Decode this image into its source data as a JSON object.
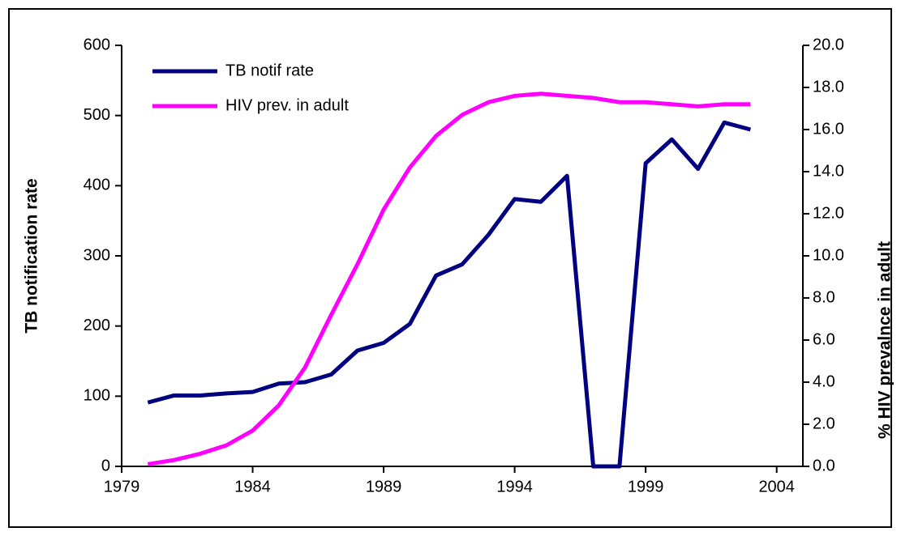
{
  "chart_data": {
    "type": "line",
    "y_label": "TB notification rate",
    "y2_label": "% HIV prevalnce in adult",
    "x": [
      1980,
      1981,
      1982,
      1983,
      1984,
      1985,
      1986,
      1987,
      1988,
      1989,
      1990,
      1991,
      1992,
      1993,
      1994,
      1995,
      1996,
      1997,
      1998,
      1999,
      2000,
      2001,
      2002,
      2003
    ],
    "series": [
      {
        "name": "TB notif rate",
        "color": "#000080",
        "values": [
          91,
          101,
          101,
          104,
          106,
          118,
          120,
          131,
          165,
          176,
          203,
          272,
          288,
          330,
          381,
          377,
          414,
          0,
          0,
          432,
          466,
          424,
          490,
          480
        ]
      },
      {
        "name": "HIV prev. in adult",
        "color": "#ff00ff",
        "axis": "y2",
        "values": [
          0.1,
          0.3,
          0.6,
          1.0,
          1.7,
          2.9,
          4.7,
          7.2,
          9.6,
          12.2,
          14.2,
          15.7,
          16.7,
          17.3,
          17.6,
          17.7,
          17.6,
          17.5,
          17.3,
          17.3,
          17.2,
          17.1,
          17.2,
          17.2
        ]
      }
    ],
    "xlim": [
      1979,
      2005
    ],
    "xticks": [
      1979,
      1984,
      1989,
      1994,
      1999,
      2004
    ],
    "ylim": [
      0,
      600
    ],
    "yticks": [
      0,
      100,
      200,
      300,
      400,
      500,
      600
    ],
    "y2lim": [
      0,
      20
    ],
    "y2ticks": [
      {
        "value": 0,
        "label": "0.0"
      },
      {
        "value": 2,
        "label": "2.0"
      },
      {
        "value": 4,
        "label": "4.0"
      },
      {
        "value": 6,
        "label": "6.0"
      },
      {
        "value": 8,
        "label": "8.0"
      },
      {
        "value": 10,
        "label": "10.0"
      },
      {
        "value": 12,
        "label": "12.0"
      },
      {
        "value": 14,
        "label": "14.0"
      },
      {
        "value": 16,
        "label": "16.0"
      },
      {
        "value": 18,
        "label": "18.0"
      },
      {
        "value": 20,
        "label": "20.0"
      }
    ],
    "legend": "top-left"
  }
}
